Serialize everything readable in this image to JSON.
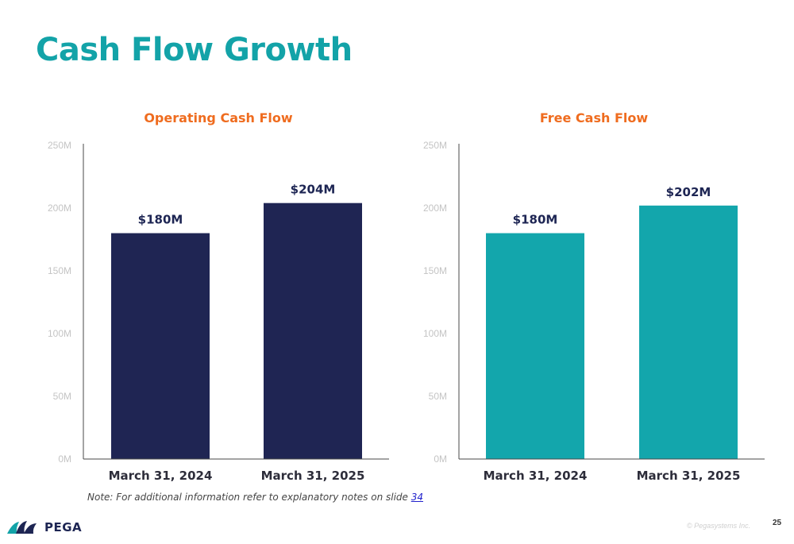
{
  "slide": {
    "title": "Cash Flow Growth",
    "note_prefix": "Note: For additional information refer to explanatory notes on slide ",
    "note_link": "34",
    "logo_text": "PEGA",
    "copyright": "© Pegasystems Inc.",
    "page_number": "25"
  },
  "colors": {
    "title": "#13a3a8",
    "chart_title": "#ef6c1f",
    "operating_bar": "#1f2553",
    "free_bar": "#13a6ac"
  },
  "chart_data": [
    {
      "type": "bar",
      "title": "Operating Cash Flow",
      "categories": [
        "March 31, 2024",
        "March 31, 2025"
      ],
      "values": [
        180,
        204
      ],
      "data_labels": [
        "$180M",
        "$204M"
      ],
      "unit": "M",
      "ylim": [
        0,
        250
      ],
      "yticks": [
        0,
        50,
        100,
        150,
        200,
        250
      ],
      "ytick_labels": [
        "0M",
        "50M",
        "100M",
        "150M",
        "200M",
        "250M"
      ],
      "color": "#1f2553",
      "grid": false
    },
    {
      "type": "bar",
      "title": "Free Cash Flow",
      "categories": [
        "March 31, 2024",
        "March 31, 2025"
      ],
      "values": [
        180,
        202
      ],
      "data_labels": [
        "$180M",
        "$202M"
      ],
      "unit": "M",
      "ylim": [
        0,
        250
      ],
      "yticks": [
        0,
        50,
        100,
        150,
        200,
        250
      ],
      "ytick_labels": [
        "0M",
        "50M",
        "100M",
        "150M",
        "200M",
        "250M"
      ],
      "color": "#13a6ac",
      "grid": false
    }
  ]
}
